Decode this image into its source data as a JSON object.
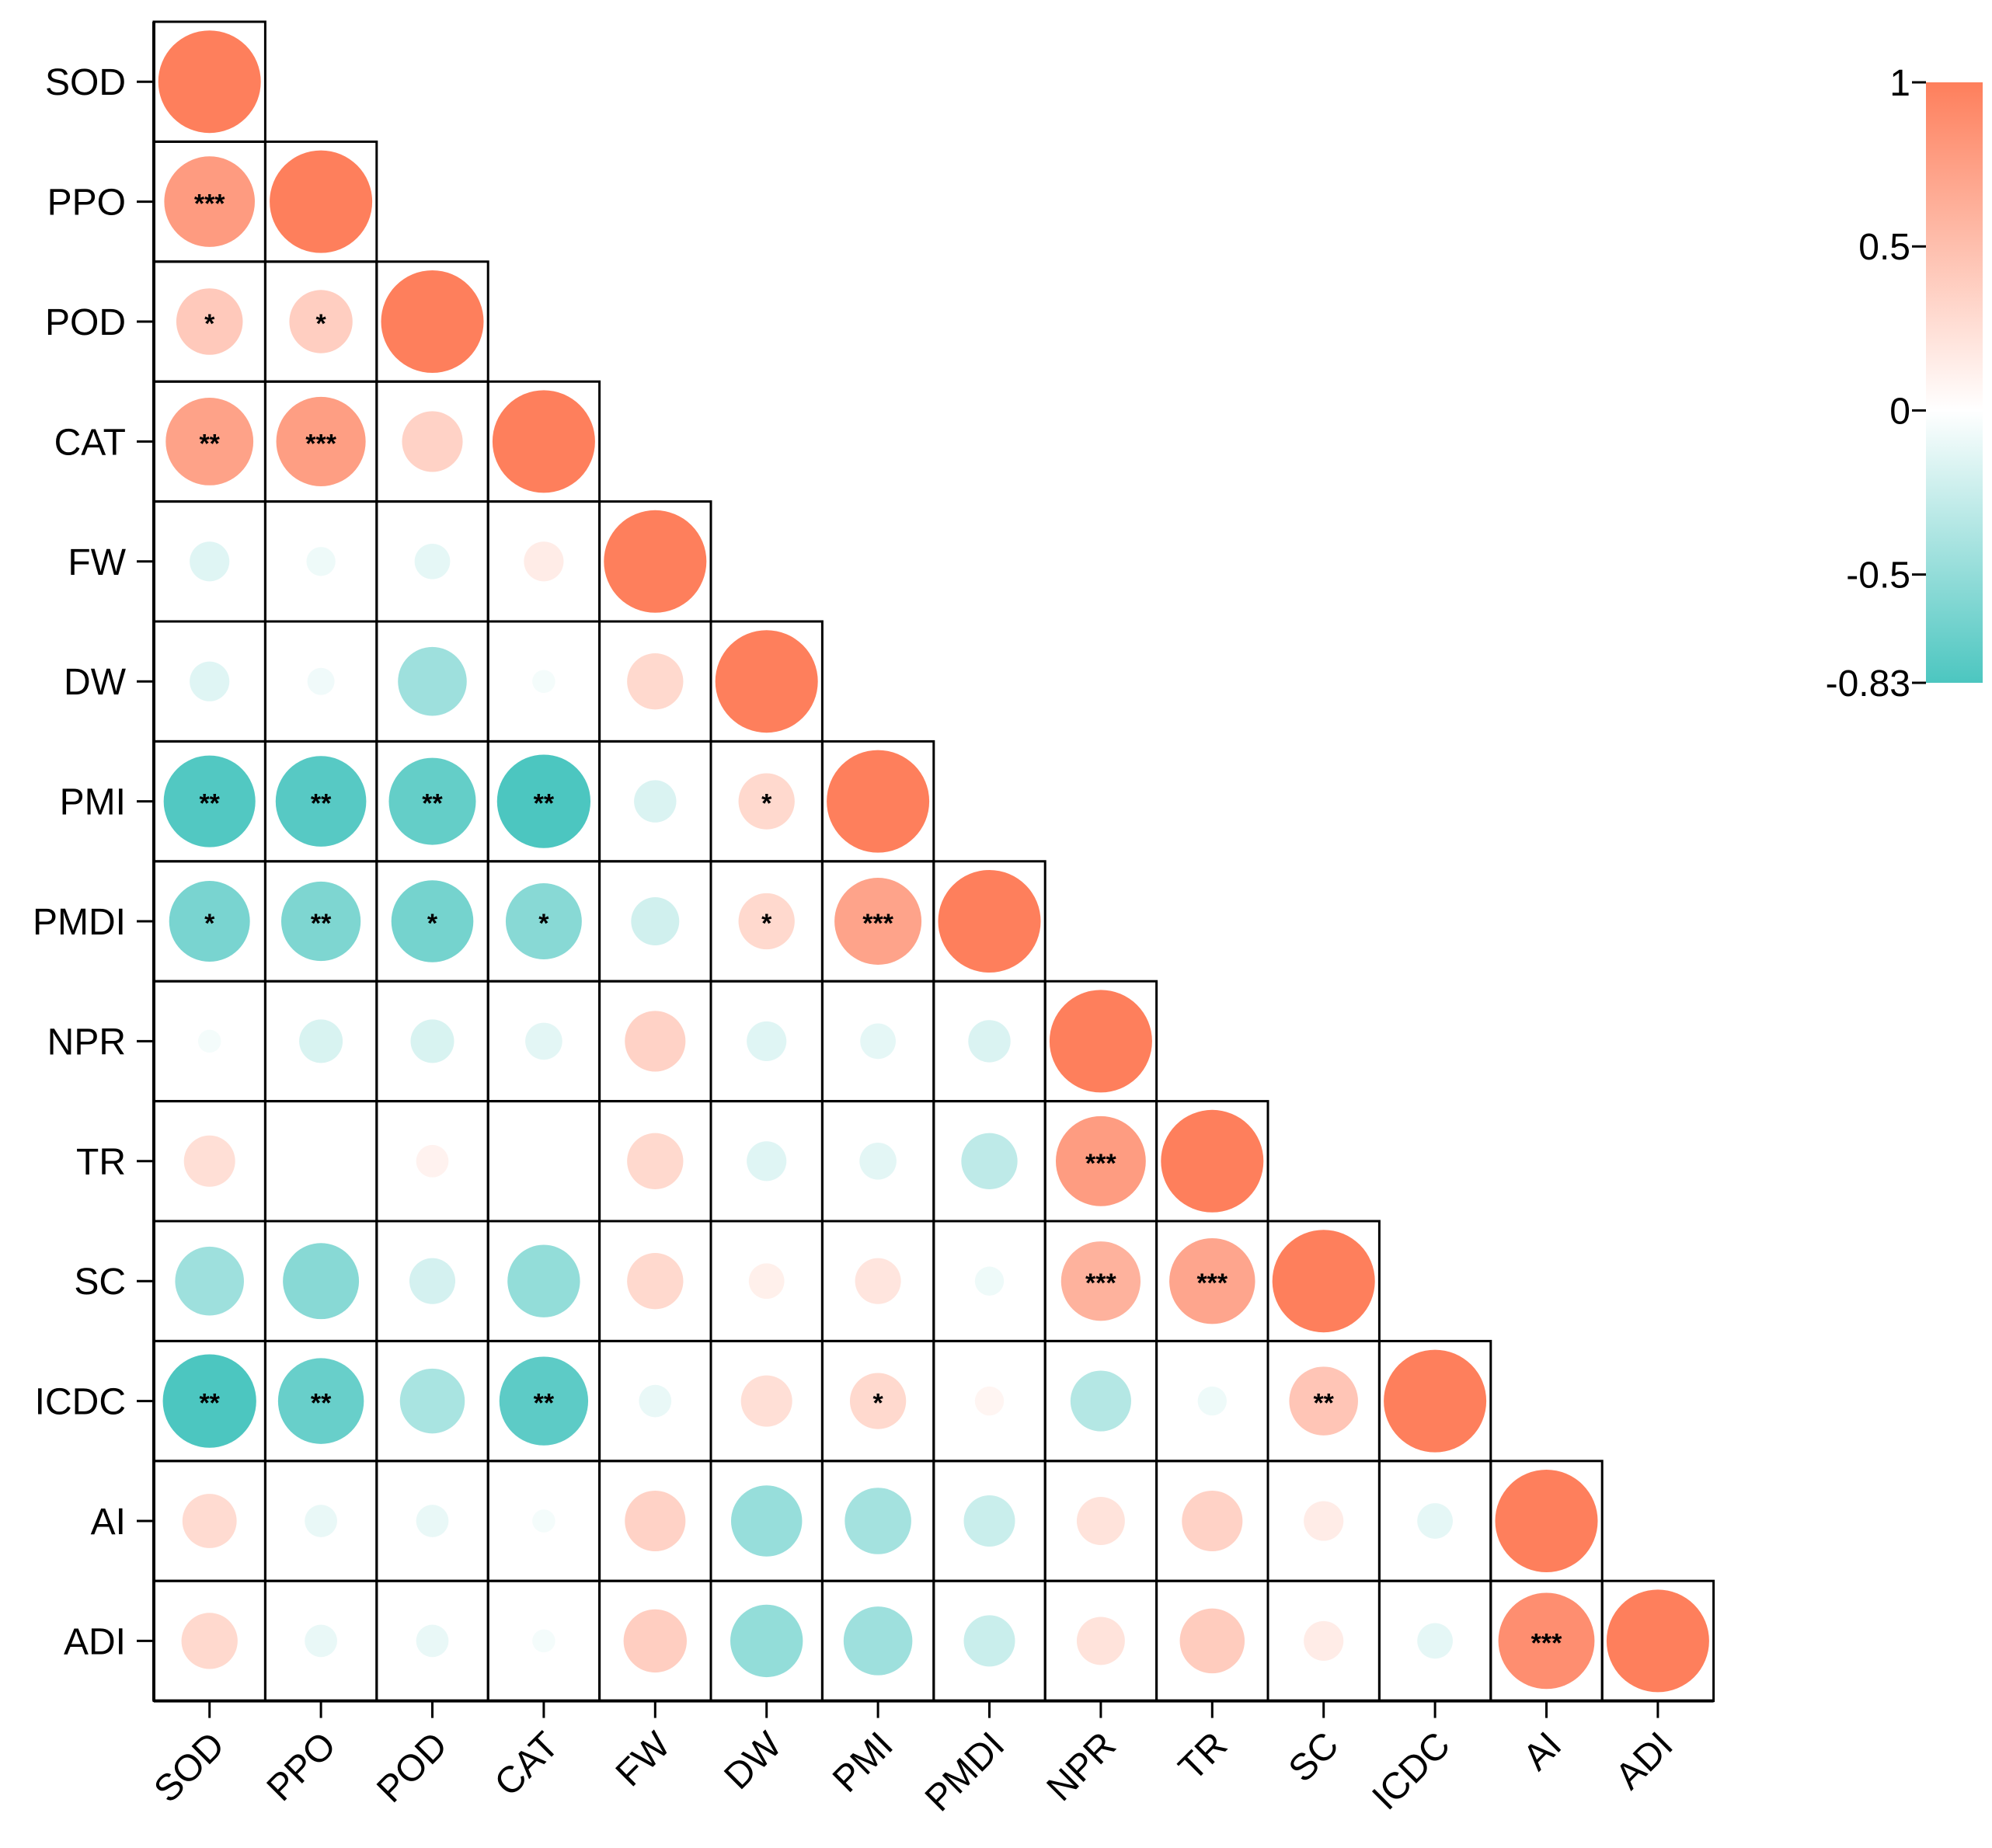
{
  "chart_data": {
    "type": "heatmap",
    "style": "lower-triangular correlation matrix, circle size and colour encode correlation",
    "variables": [
      "SOD",
      "PPO",
      "POD",
      "CAT",
      "FW",
      "DW",
      "PMI",
      "PMDI",
      "NPR",
      "TR",
      "SC",
      "ICDC",
      "AI",
      "ADI"
    ],
    "correlations": [
      [
        1.0
      ],
      [
        0.78,
        1.0
      ],
      [
        0.42,
        0.38,
        1.0
      ],
      [
        0.73,
        0.76,
        0.35,
        1.0
      ],
      [
        -0.15,
        -0.08,
        -0.12,
        0.15,
        1.0
      ],
      [
        -0.15,
        -0.07,
        -0.45,
        -0.05,
        0.3,
        1.0
      ],
      [
        -0.8,
        -0.78,
        -0.72,
        -0.83,
        -0.17,
        0.3,
        1.0
      ],
      [
        -0.62,
        -0.6,
        -0.64,
        -0.55,
        -0.22,
        0.3,
        0.72,
        1.0
      ],
      [
        -0.05,
        -0.18,
        -0.18,
        -0.13,
        0.35,
        -0.15,
        -0.12,
        -0.17,
        1.0
      ],
      [
        0.25,
        0.0,
        0.1,
        0.0,
        0.3,
        -0.15,
        -0.13,
        -0.3,
        0.77,
        1.0
      ],
      [
        -0.45,
        -0.55,
        -0.2,
        -0.5,
        0.3,
        0.12,
        0.2,
        -0.08,
        0.6,
        0.7,
        1.0
      ],
      [
        -0.83,
        -0.7,
        -0.4,
        -0.75,
        -0.1,
        0.25,
        0.3,
        0.08,
        -0.35,
        -0.08,
        0.45,
        1.0
      ],
      [
        0.28,
        -0.1,
        -0.1,
        -0.05,
        0.35,
        -0.48,
        -0.42,
        -0.25,
        0.22,
        0.35,
        0.15,
        -0.12,
        1.0
      ],
      [
        0.3,
        -0.1,
        -0.1,
        -0.05,
        0.38,
        -0.5,
        -0.45,
        -0.25,
        0.22,
        0.4,
        0.15,
        -0.12,
        0.88,
        1.0
      ]
    ],
    "significance": [
      [
        ""
      ],
      [
        "***",
        ""
      ],
      [
        "*",
        "*",
        ""
      ],
      [
        "**",
        "***",
        "",
        ""
      ],
      [
        "",
        "",
        "",
        "",
        ""
      ],
      [
        "",
        "",
        "",
        "",
        "",
        ""
      ],
      [
        "**",
        "**",
        "**",
        "**",
        "",
        "*",
        ""
      ],
      [
        "*",
        "**",
        "*",
        "*",
        "",
        "*",
        "***",
        ""
      ],
      [
        "",
        "",
        "",
        "",
        "",
        "",
        "",
        "",
        ""
      ],
      [
        "",
        "",
        "",
        "",
        "",
        "",
        "",
        "",
        "***",
        ""
      ],
      [
        "",
        "",
        "",
        "",
        "",
        "",
        "",
        "",
        "***",
        "***",
        ""
      ],
      [
        "**",
        "**",
        "",
        "**",
        "",
        "",
        "*",
        "",
        "",
        "",
        "**",
        ""
      ],
      [
        "",
        "",
        "",
        "",
        "",
        "",
        "",
        "",
        "",
        "",
        "",
        "",
        ""
      ],
      [
        "",
        "",
        "",
        "",
        "",
        "",
        "",
        "",
        "",
        "",
        "",
        "",
        "***",
        ""
      ]
    ],
    "colorbar": {
      "min": -0.83,
      "max": 1,
      "ticks": [
        "1",
        "0.5",
        "0",
        "-0.5",
        "-0.83"
      ],
      "tick_values": [
        1,
        0.5,
        0,
        -0.5,
        -0.83
      ],
      "colors": {
        "positive": "#fe7f5c",
        "zero": "#ffffff",
        "negative": "#4cc6c0"
      }
    }
  }
}
